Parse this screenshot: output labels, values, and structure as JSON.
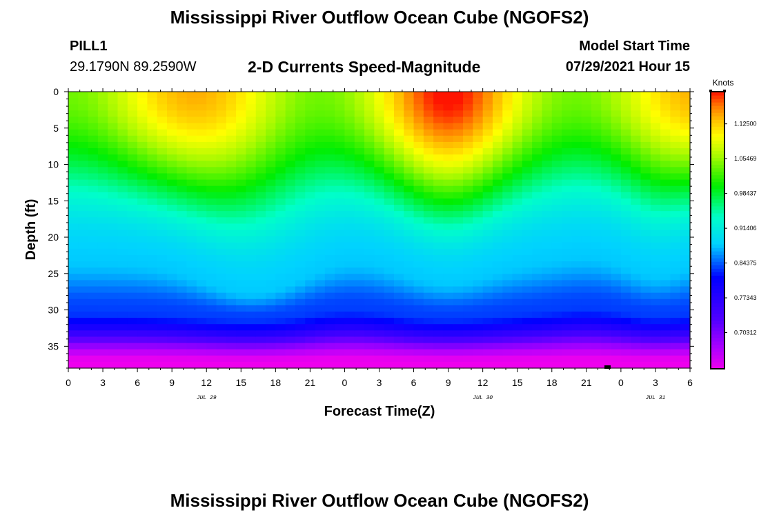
{
  "header": {
    "title": "Mississippi River Outflow Ocean Cube (NGOFS2)",
    "station": "PILL1",
    "coordinates": "29.1790N  89.2590W",
    "plot_title": "2-D Currents Speed-Magnitude",
    "model_label": "Model Start Time",
    "model_time": "07/29/2021 Hour 15"
  },
  "footer": {
    "title": "Mississippi River Outflow Ocean Cube (NGOFS2)"
  },
  "chart_data": {
    "type": "heatmap",
    "title": "2-D Currents Speed-Magnitude",
    "xlabel": "Forecast Time(Z)",
    "ylabel": "Depth (ft)",
    "x_range_hours": [
      0,
      54
    ],
    "y_range": [
      0,
      38
    ],
    "y_inverted": true,
    "x_tick_labels": [
      "0",
      "3",
      "6",
      "9",
      "12",
      "15",
      "18",
      "21",
      "0",
      "3",
      "6",
      "9",
      "12",
      "15",
      "18",
      "21",
      "0",
      "3",
      "6"
    ],
    "y_ticks": [
      0,
      5,
      10,
      15,
      20,
      25,
      30,
      35
    ],
    "date_labels": [
      {
        "text": "JUL 29",
        "hour": 12
      },
      {
        "text": "JUL 30",
        "hour": 36
      },
      {
        "text": "JUL 31",
        "hour": 51
      }
    ],
    "colorbar": {
      "unit": "Knots",
      "min": 0.63,
      "max": 1.19,
      "tick_values": [
        1.125,
        1.0547,
        0.9844,
        0.914,
        0.8438,
        0.7734,
        0.7031
      ],
      "tick_labels": [
        "1.12500",
        "1.05469",
        "0.98437",
        "0.91406",
        "0.84375",
        "0.77343",
        "0.70312"
      ]
    },
    "speed_profile_note": "Surface speeds ~1.1-1.17 kt with peaks near hours 9-15 and 30-36; ~0.84 kt minimum band near 29 ft depth; ~0.63 kt at bottom (38 ft).",
    "grid": false
  }
}
